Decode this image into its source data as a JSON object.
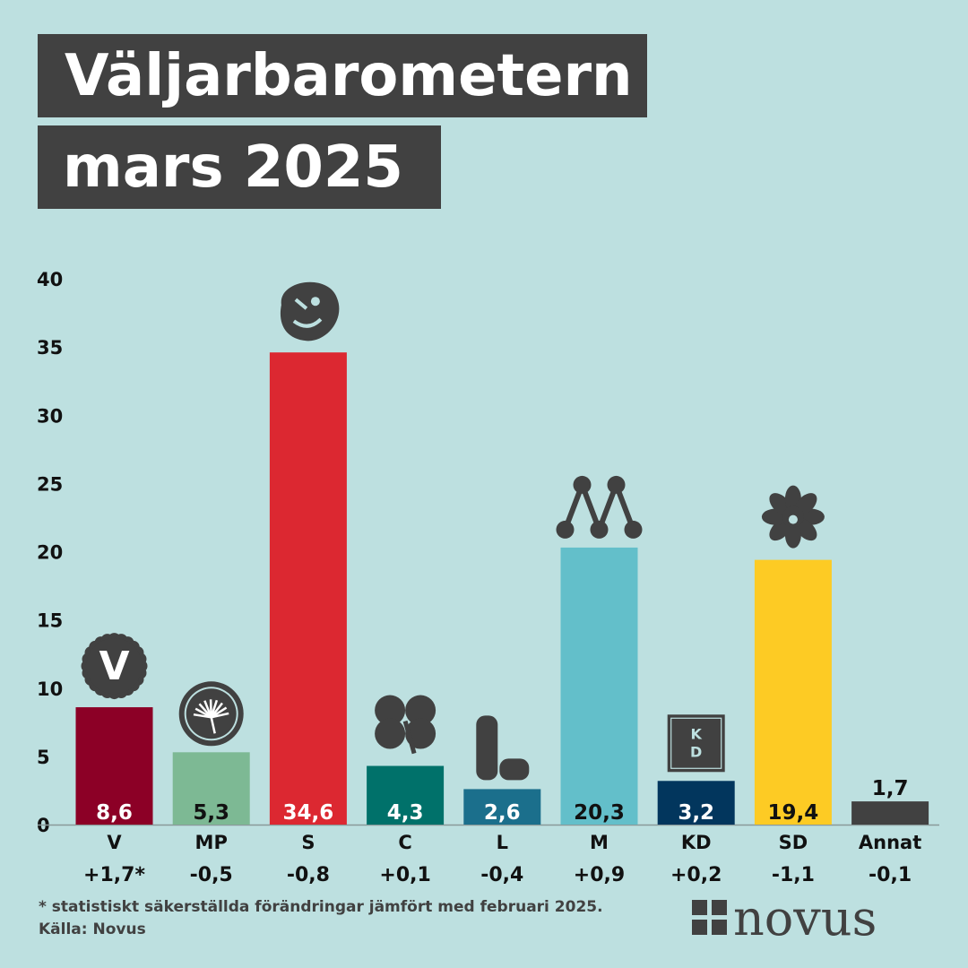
{
  "title": {
    "line1": "Väljarbarometern",
    "line2": "mars 2025"
  },
  "chart_data": {
    "type": "bar",
    "y_ticks": [
      0,
      5,
      10,
      15,
      20,
      25,
      30,
      35,
      40
    ],
    "ylim": [
      0,
      40
    ],
    "grid": false,
    "categories": [
      "V",
      "MP",
      "S",
      "C",
      "L",
      "M",
      "KD",
      "SD",
      "Annat"
    ],
    "labels": [
      "8,6",
      "5,3",
      "34,6",
      "4,3",
      "2,6",
      "20,3",
      "3,2",
      "19,4",
      "1,7"
    ],
    "values": [
      8.6,
      5.3,
      34.6,
      4.3,
      2.6,
      20.3,
      3.2,
      19.4,
      1.7
    ],
    "changes": [
      "+1,7*",
      "-0,5",
      "-0,8",
      "+0,1",
      "-0,4",
      "+0,9",
      "+0,2",
      "-1,1",
      "-0,1"
    ],
    "colors": [
      "#8c0026",
      "#7db994",
      "#dc2831",
      "#00716a",
      "#1b6f8c",
      "#63bfca",
      "#02365d",
      "#fdcb24",
      "#414141"
    ],
    "label_colors": [
      "#ffffff",
      "#111111",
      "#ffffff",
      "#ffffff",
      "#ffffff",
      "#111111",
      "#ffffff",
      "#111111",
      "#111111"
    ],
    "icons": [
      "v-logo-icon",
      "mp-dandelion-icon",
      "s-rose-icon",
      "c-clover-icon",
      "l-logo-icon",
      "m-logo-icon",
      "kd-logo-icon",
      "sd-flower-icon",
      ""
    ],
    "icon_texts": {
      "V": "V",
      "KD": "KD"
    }
  },
  "footnote": "* statistiskt säkerställda förändringar jämfört med februari 2025.",
  "source": "Källa: Novus",
  "logo": {
    "name": "novus-logo",
    "text": "novus"
  }
}
